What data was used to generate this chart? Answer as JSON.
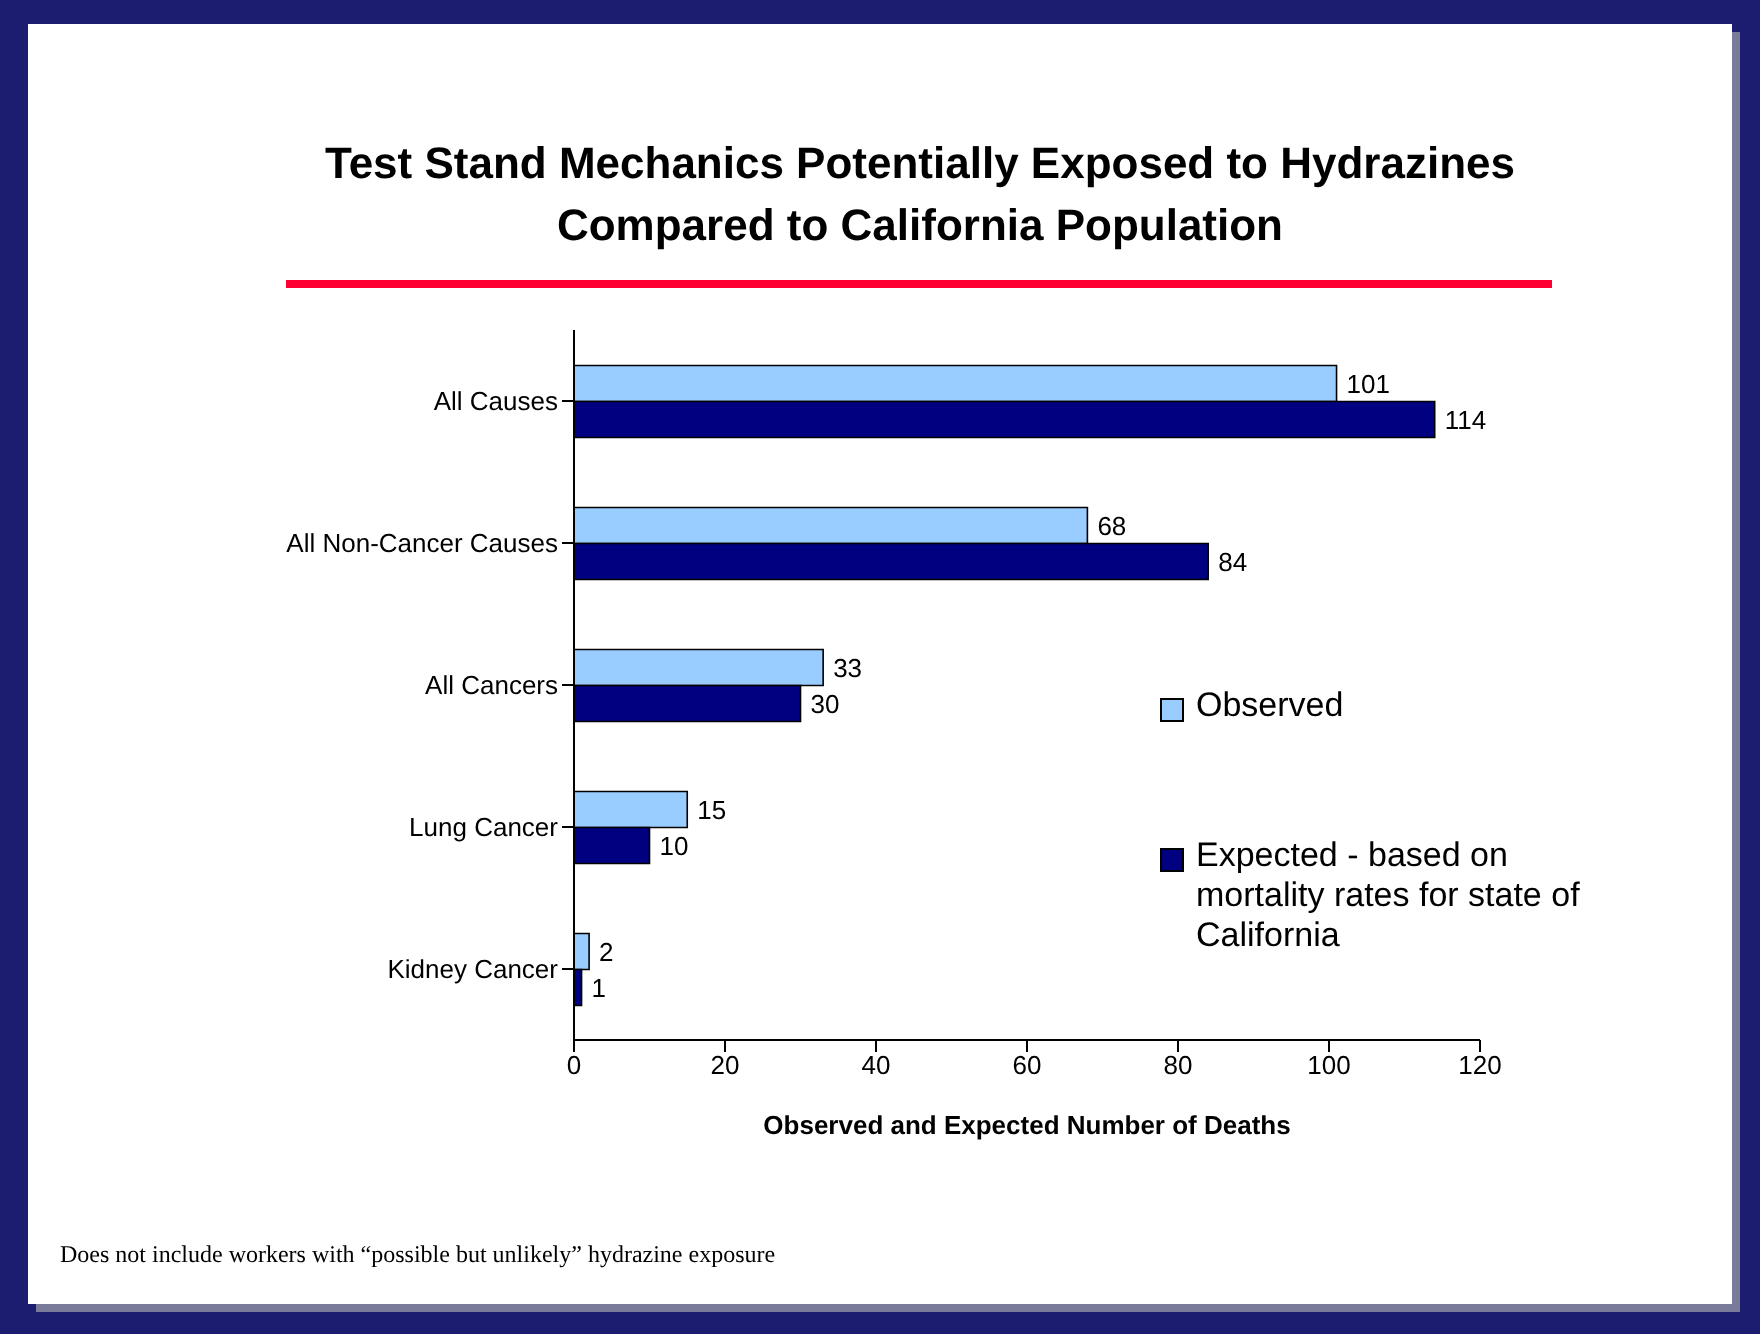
{
  "chart_data": {
    "type": "bar",
    "orientation": "horizontal",
    "title": "Test Stand Mechanics Potentially Exposed to Hydrazines Compared to California Population",
    "xlabel": "Observed and Expected Number of Deaths",
    "categories": [
      "All Causes",
      "All Non-Cancer Causes",
      "All Cancers",
      "Lung Cancer",
      "Kidney Cancer"
    ],
    "series": [
      {
        "name": "Observed",
        "color": "#99ccff",
        "values": [
          101,
          68,
          33,
          15,
          2
        ]
      },
      {
        "name": "Expected - based on mortality rates for state of California",
        "color": "#000080",
        "values": [
          114,
          84,
          30,
          10,
          1
        ]
      }
    ],
    "xlim": [
      0,
      120
    ],
    "xticks": [
      0,
      20,
      40,
      60,
      80,
      100,
      120
    ],
    "data_labels": true,
    "grid": false,
    "legend": "right",
    "annotations": [
      "Does not include workers with “possible but unlikely” hydrazine exposure"
    ]
  }
}
